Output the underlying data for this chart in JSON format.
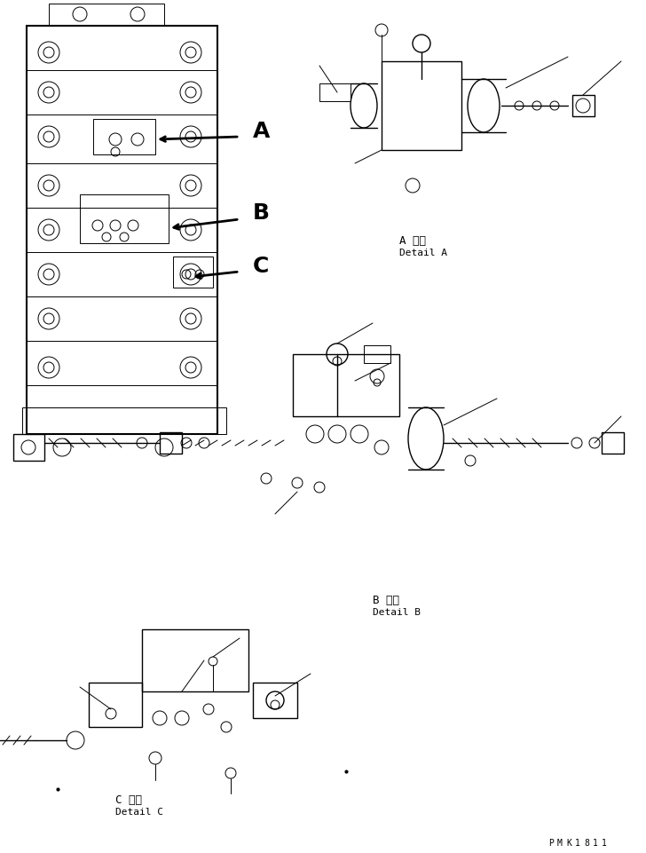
{
  "bg_color": "#ffffff",
  "line_color": "#000000",
  "text_color": "#000000",
  "label_A_japanese": "A 詳細",
  "label_A_english": "Detail A",
  "label_B_japanese": "B 詳細",
  "label_B_english": "Detail B",
  "label_C_japanese": "C 詳細",
  "label_C_english": "Detail C",
  "watermark": "PMK1811",
  "arrow_labels": [
    "A",
    "B",
    "C"
  ],
  "fig_width": 7.28,
  "fig_height": 9.62,
  "dpi": 100
}
